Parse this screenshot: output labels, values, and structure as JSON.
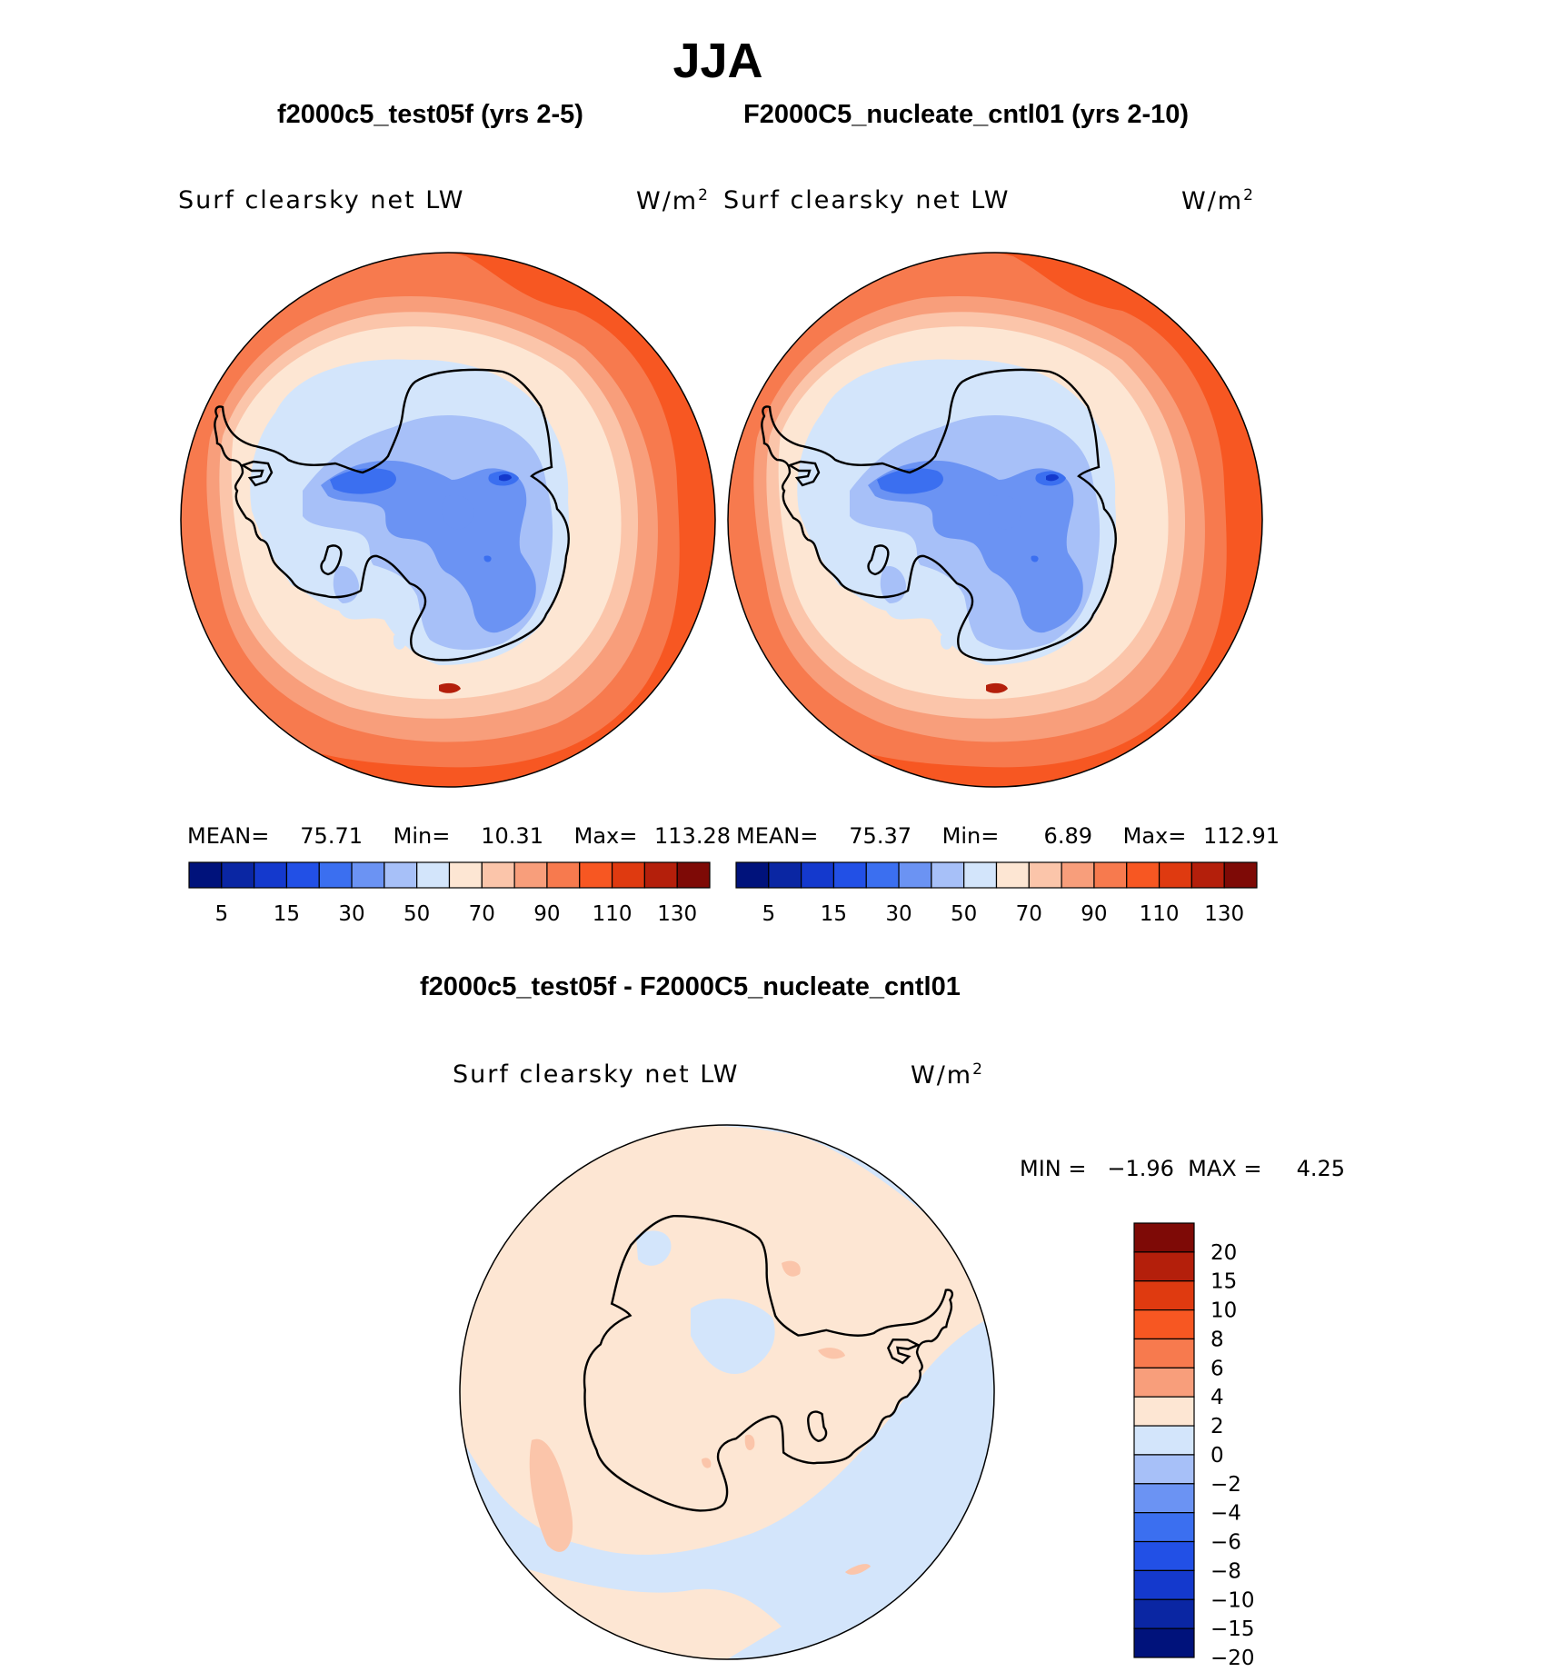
{
  "title": "JJA",
  "panels": [
    {
      "case_title": "f2000c5_test05f (yrs 2-5)",
      "variable": "Surf clearsky net LW",
      "units": "W/m",
      "units_exp": "2",
      "mean_label": "MEAN=",
      "mean": "75.71",
      "min_label": "Min=",
      "min": "10.31",
      "max_label": "Max=",
      "max": "113.28"
    },
    {
      "case_title": "F2000C5_nucleate_cntl01 (yrs 2-10)",
      "variable": "Surf clearsky net LW",
      "units": "W/m",
      "units_exp": "2",
      "mean_label": "MEAN=",
      "mean": "75.37",
      "min_label": "Min=",
      "min": "6.89",
      "max_label": "Max=",
      "max": "112.91"
    }
  ],
  "diff": {
    "title": "f2000c5_test05f - F2000C5_nucleate_cntl01",
    "variable": "Surf clearsky net LW",
    "units": "W/m",
    "units_exp": "2",
    "minmax_text": "MIN =   −1.96  MAX =     4.25"
  },
  "main_colorbar": {
    "colors": [
      "#00127b",
      "#0a26a3",
      "#1439cd",
      "#2250e6",
      "#3b6ff0",
      "#6b93f3",
      "#a7c0f8",
      "#d3e5fb",
      "#fde6d3",
      "#fbc5aa",
      "#f89e7b",
      "#f77a4e",
      "#f75722",
      "#df3a10",
      "#b41f0b",
      "#7e0a06"
    ],
    "tick_labels": [
      "5",
      "15",
      "30",
      "50",
      "70",
      "90",
      "110",
      "130"
    ]
  },
  "diff_colorbar": {
    "colors": [
      "#7e0a06",
      "#b41f0b",
      "#df3a10",
      "#f75722",
      "#f77a4e",
      "#f89e7b",
      "#fde6d3",
      "#d3e5fb",
      "#a7c0f8",
      "#6b93f3",
      "#3b6ff0",
      "#2250e6",
      "#1439cd",
      "#0a26a3",
      "#00127b"
    ],
    "tick_labels": [
      "20",
      "15",
      "10",
      "8",
      "6",
      "4",
      "2",
      "0",
      "−2",
      "−4",
      "−6",
      "−8",
      "−10",
      "−15",
      "−20"
    ]
  },
  "map_colors": {
    "outer_red": "#f75722",
    "red_orange": "#f77a4e",
    "salmon": "#f89e7b",
    "peach": "#fbc5aa",
    "cream": "#fde6d3",
    "pale_blue": "#d3e5fb",
    "light_blue": "#a7c0f8",
    "mid_blue": "#6b93f3",
    "blue": "#3b6ff0",
    "deep_blue": "#1439cd",
    "coast": "#000000"
  }
}
